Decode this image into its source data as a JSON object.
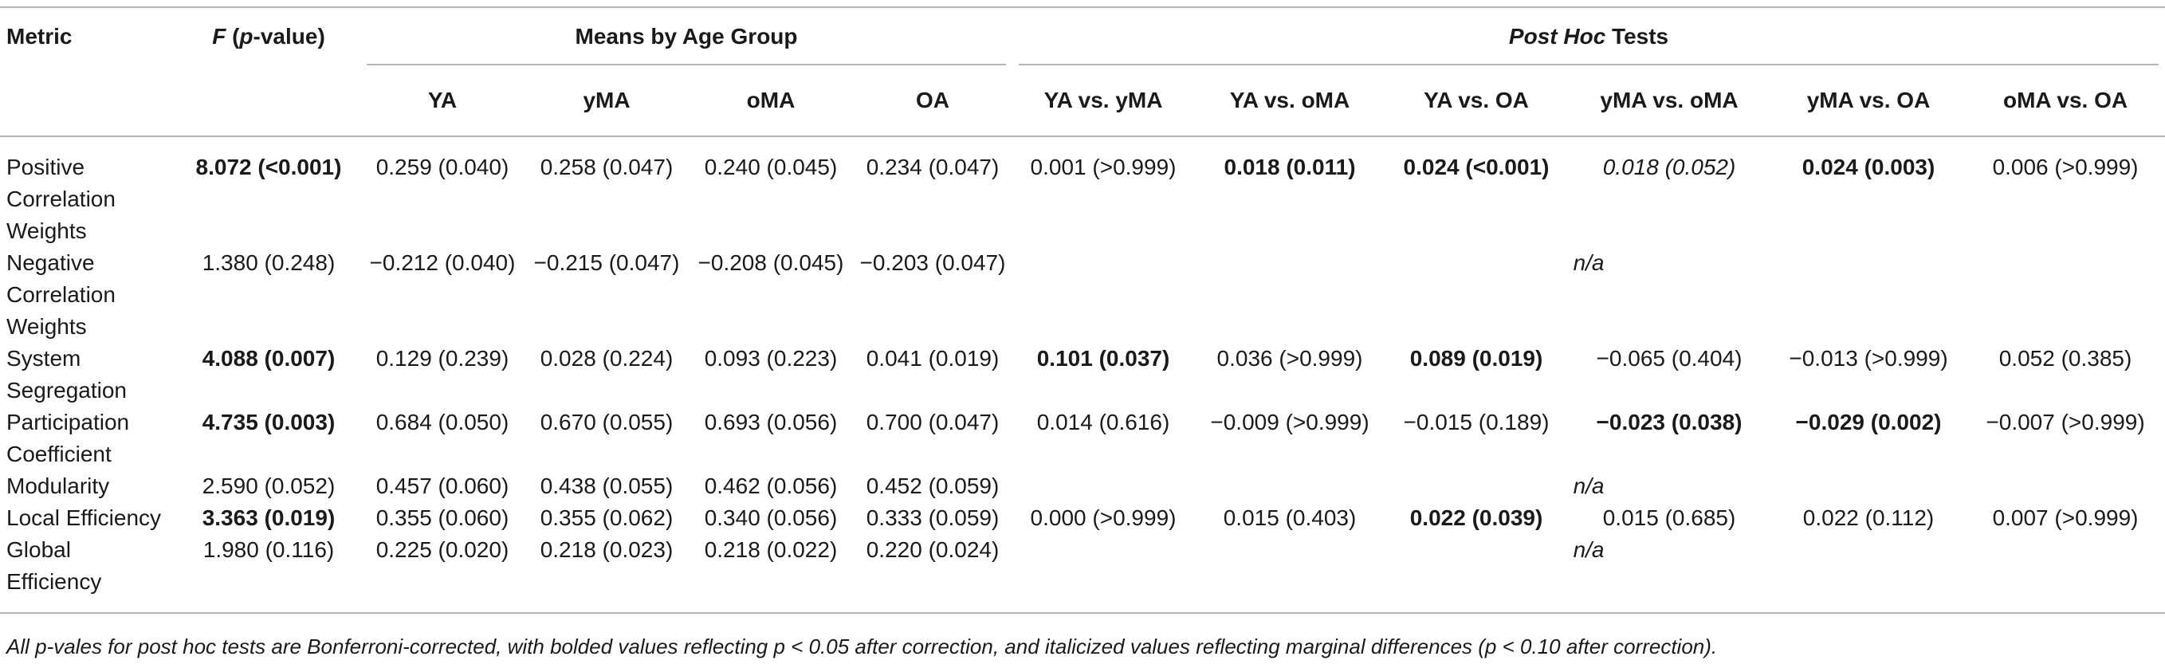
{
  "header": {
    "metric": "Metric",
    "f_prefix": "F",
    "f_suffix": " (",
    "f_p": "p",
    "f_end": "-value)",
    "means_group": "Means by Age Group",
    "posthoc_italic": "Post Hoc",
    "posthoc_rest": " Tests",
    "groups": [
      "YA",
      "yMA",
      "oMA",
      "OA"
    ],
    "comparisons": [
      "YA vs. yMA",
      "YA vs. oMA",
      "YA vs. OA",
      "yMA vs. oMA",
      "yMA vs. OA",
      "oMA vs. OA"
    ]
  },
  "rows": [
    {
      "metric": [
        "Positive",
        "Correlation",
        "Weights"
      ],
      "f": "8.072 (<0.001)",
      "means": [
        "0.259 (0.040)",
        "0.258 (0.047)",
        "0.240 (0.045)",
        "0.234 (0.047)"
      ],
      "posthoc": [
        "0.001 (>0.999)",
        "0.018 (0.011)",
        "0.024 (<0.001)",
        "0.018 (0.052)",
        "0.024 (0.003)",
        "0.006 (>0.999)"
      ]
    },
    {
      "metric": [
        "Negative",
        "Correlation",
        "Weights"
      ],
      "f": "1.380 (0.248)",
      "means": [
        "−0.212 (0.040)",
        "−0.215 (0.047)",
        "−0.208 (0.045)",
        "−0.203 (0.047)"
      ],
      "na": "n/a"
    },
    {
      "metric": [
        "System",
        "Segregation"
      ],
      "f": "4.088 (0.007)",
      "means": [
        "0.129 (0.239)",
        "0.028 (0.224)",
        "0.093 (0.223)",
        "0.041 (0.019)"
      ],
      "posthoc": [
        "0.101 (0.037)",
        "0.036 (>0.999)",
        "0.089 (0.019)",
        "−0.065 (0.404)",
        "−0.013 (>0.999)",
        "0.052 (0.385)"
      ]
    },
    {
      "metric": [
        "Participation",
        "Coefficient"
      ],
      "f": "4.735 (0.003)",
      "means": [
        "0.684 (0.050)",
        "0.670 (0.055)",
        "0.693 (0.056)",
        "0.700 (0.047)"
      ],
      "posthoc": [
        "0.014 (0.616)",
        "−0.009 (>0.999)",
        "−0.015 (0.189)",
        "−0.023 (0.038)",
        "−0.029 (0.002)",
        "−0.007 (>0.999)"
      ]
    },
    {
      "metric": [
        "Modularity"
      ],
      "f": "2.590 (0.052)",
      "means": [
        "0.457 (0.060)",
        "0.438 (0.055)",
        "0.462 (0.056)",
        "0.452 (0.059)"
      ],
      "na": "n/a"
    },
    {
      "metric": [
        "Local Efficiency"
      ],
      "f": "3.363 (0.019)",
      "means": [
        "0.355 (0.060)",
        "0.355 (0.062)",
        "0.340 (0.056)",
        "0.333 (0.059)"
      ],
      "posthoc": [
        "0.000 (>0.999)",
        "0.015 (0.403)",
        "0.022 (0.039)",
        "0.015 (0.685)",
        "0.022 (0.112)",
        "0.007 (>0.999)"
      ]
    },
    {
      "metric": [
        "Global",
        "Efficiency"
      ],
      "f": "1.980 (0.116)",
      "means": [
        "0.225 (0.020)",
        "0.218 (0.023)",
        "0.218 (0.022)",
        "0.220 (0.024)"
      ],
      "na": "n/a"
    }
  ],
  "footnote": {
    "a": "All ",
    "p1": "p",
    "b": "-vales for post hoc tests are Bonferroni-corrected, with bolded values reflecting ",
    "p2": "p",
    "c": " < 0.05 after correction, and italicized values reflecting marginal differences (",
    "p3": "p",
    "d": " < 0.10 after correction)."
  }
}
